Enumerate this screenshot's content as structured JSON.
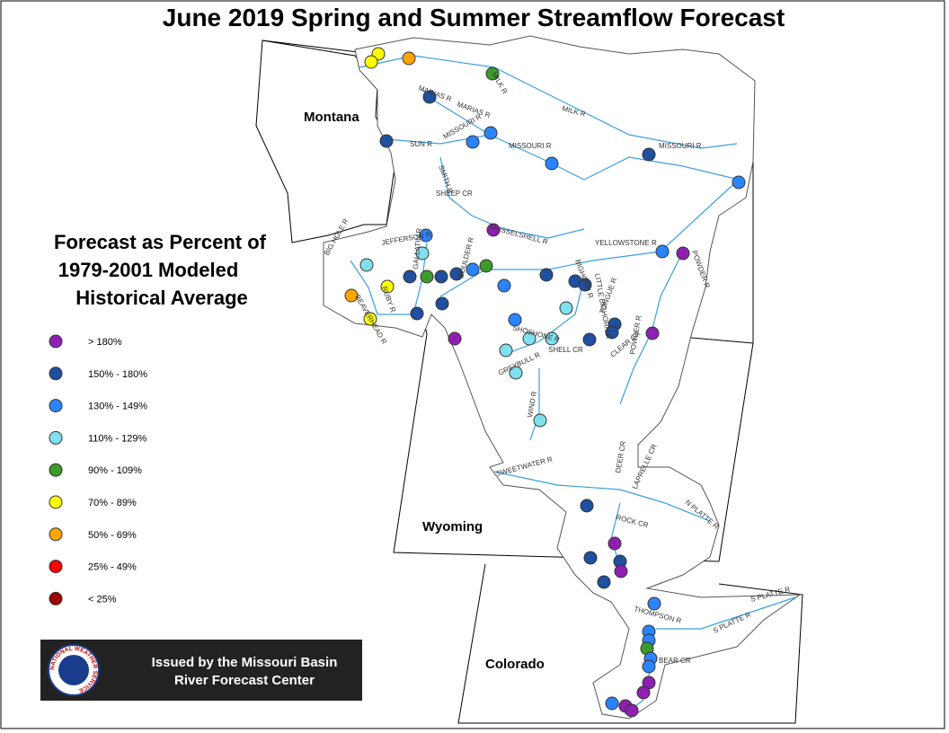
{
  "title": "June 2019 Spring and Summer Streamflow Forecast",
  "legend": {
    "title": [
      "Forecast as Percent of",
      "1979-2001 Modeled",
      "Historical Average"
    ],
    "items": [
      {
        "label": "> 180%",
        "color": "#8e1fb0"
      },
      {
        "label": "150% - 180%",
        "color": "#1f4f9f"
      },
      {
        "label": "130% - 149%",
        "color": "#2b84ff"
      },
      {
        "label": "110% - 129%",
        "color": "#80e0f0"
      },
      {
        "label": "90% - 109%",
        "color": "#3c9b2a"
      },
      {
        "label": "70% - 89%",
        "color": "#ffff00"
      },
      {
        "label": "50% - 69%",
        "color": "#ffa500"
      },
      {
        "label": "25% - 49%",
        "color": "#ff0000"
      },
      {
        "label": "< 25%",
        "color": "#a00000"
      }
    ]
  },
  "states": [
    "Montana",
    "Wyoming",
    "Colorado"
  ],
  "rivers": [
    "MILK R",
    "MARIAS R",
    "MARIAS R",
    "MILK R",
    "SUN R",
    "MISSOURI R",
    "MISSOURI R",
    "MISSOURI R",
    "SMITH R",
    "SHEEP CR",
    "MUSSELSHELL R",
    "YELLOWSTONE R",
    "POWDER R",
    "BIGHORN R",
    "LITTLE BIGHORN R",
    "TONGUE R",
    "SHOSHONE R",
    "SHELL CR",
    "GREYBULL R",
    "WIND R",
    "CLEAR CR",
    "POWDER R",
    "SWEETWATER R",
    "DEER CR",
    "LAPRELLE CR",
    "N PLATTE R",
    "ROCK CR",
    "THOMPSON R",
    "S PLATTE R",
    "S PLATTE R",
    "BEAR CR",
    "JEFFERSON R",
    "RUBY R",
    "BIG HOLE R",
    "BEAVERHEAD R",
    "GALLATIN R",
    "BOULDER R"
  ],
  "footer": [
    "Issued by the Missouri Basin",
    "River Forecast Center"
  ],
  "logo": "NATIONAL WEATHER SERVICE"
}
